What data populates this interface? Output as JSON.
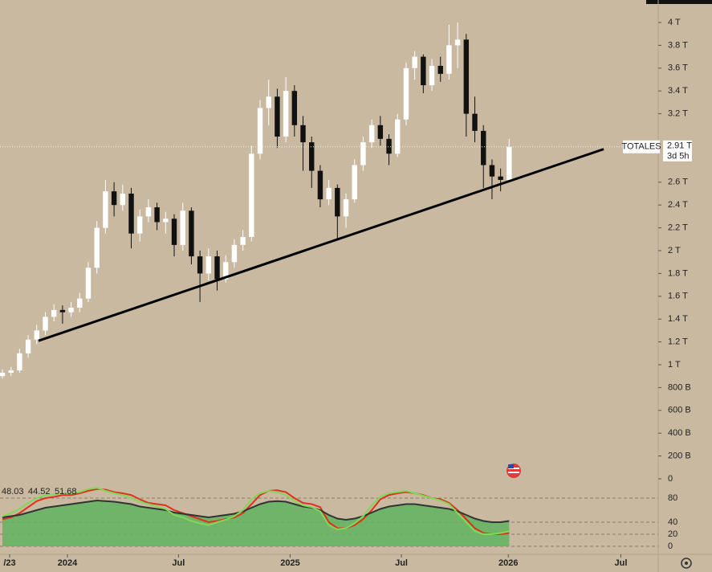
{
  "chart_data": [
    {
      "type": "candlestick",
      "xlim": [
        -0.28,
        76.35
      ],
      "xticks": [
        {
          "value": 0.84,
          "label": "/23"
        },
        {
          "value": 7.57,
          "label": "2024"
        },
        {
          "value": 20.5,
          "label": "Jul"
        },
        {
          "value": 33.5,
          "label": "2025"
        },
        {
          "value": 46.45,
          "label": "Jul"
        },
        {
          "value": 58.9,
          "label": "2026"
        },
        {
          "value": 72,
          "label": "Jul"
        }
      ],
      "ylim": [
        0,
        4
      ],
      "yticks": [
        0,
        {
          "value": 0.2,
          "label": "200 B"
        },
        {
          "value": 0.4,
          "label": "400 B"
        },
        {
          "value": 0.6,
          "label": "600 B"
        },
        {
          "value": 0.8,
          "label": "800 B"
        },
        {
          "value": 1,
          "label": "1 T"
        },
        {
          "value": 1.2,
          "label": "1.2 T"
        },
        {
          "value": 1.4,
          "label": "1.4 T"
        },
        {
          "value": 1.6,
          "label": "1.6 T"
        },
        {
          "value": 1.8,
          "label": "1.8 T"
        },
        {
          "value": 2,
          "label": "2 T"
        },
        {
          "value": 2.2,
          "label": "2.2 T"
        },
        {
          "value": 2.4,
          "label": "2.4 T"
        },
        {
          "value": 2.6,
          "label": "2.6 T"
        },
        {
          "value": 3.2,
          "label": "3.2 T"
        },
        {
          "value": 3.4,
          "label": "3.4 T"
        },
        {
          "value": 3.6,
          "label": "3.6 T"
        },
        {
          "value": 3.8,
          "label": "3.8 T"
        },
        {
          "value": 4,
          "label": "4 T"
        }
      ],
      "up_color": "#ffffff",
      "down_color": "#111111",
      "ohlc": [
        [
          0.9,
          0.96,
          0.88,
          0.93
        ],
        [
          0.93,
          0.98,
          0.9,
          0.95
        ],
        [
          0.95,
          1.14,
          0.93,
          1.1
        ],
        [
          1.1,
          1.26,
          1.06,
          1.22
        ],
        [
          1.22,
          1.35,
          1.18,
          1.3
        ],
        [
          1.3,
          1.46,
          1.26,
          1.42
        ],
        [
          1.42,
          1.53,
          1.38,
          1.48
        ],
        [
          1.48,
          1.52,
          1.36,
          1.46
        ],
        [
          1.46,
          1.55,
          1.42,
          1.5
        ],
        [
          1.5,
          1.63,
          1.46,
          1.58
        ],
        [
          1.58,
          1.9,
          1.55,
          1.85
        ],
        [
          1.85,
          2.26,
          1.8,
          2.2
        ],
        [
          2.2,
          2.62,
          2.15,
          2.52
        ],
        [
          2.52,
          2.6,
          2.3,
          2.4
        ],
        [
          2.4,
          2.58,
          2.35,
          2.5
        ],
        [
          2.5,
          2.55,
          2.02,
          2.15
        ],
        [
          2.15,
          2.36,
          2.08,
          2.3
        ],
        [
          2.3,
          2.45,
          2.25,
          2.38
        ],
        [
          2.38,
          2.42,
          2.18,
          2.25
        ],
        [
          2.25,
          2.34,
          2.15,
          2.28
        ],
        [
          2.28,
          2.32,
          1.95,
          2.05
        ],
        [
          2.05,
          2.42,
          2.0,
          2.35
        ],
        [
          2.35,
          2.38,
          1.88,
          1.95
        ],
        [
          1.95,
          2.0,
          1.55,
          1.8
        ],
        [
          1.8,
          2.02,
          1.74,
          1.95
        ],
        [
          1.95,
          2.0,
          1.65,
          1.75
        ],
        [
          1.75,
          1.96,
          1.72,
          1.9
        ],
        [
          1.9,
          2.1,
          1.85,
          2.05
        ],
        [
          2.05,
          2.18,
          2.0,
          2.12
        ],
        [
          2.12,
          2.92,
          2.08,
          2.85
        ],
        [
          2.85,
          3.32,
          2.8,
          3.25
        ],
        [
          3.25,
          3.5,
          3.1,
          3.35
        ],
        [
          3.35,
          3.42,
          2.9,
          3.0
        ],
        [
          3.0,
          3.52,
          2.95,
          3.4
        ],
        [
          3.4,
          3.45,
          3.0,
          3.1
        ],
        [
          3.1,
          3.18,
          2.7,
          2.95
        ],
        [
          2.95,
          3.0,
          2.55,
          2.7
        ],
        [
          2.7,
          2.75,
          2.38,
          2.45
        ],
        [
          2.45,
          2.62,
          2.4,
          2.55
        ],
        [
          2.55,
          2.58,
          2.1,
          2.3
        ],
        [
          2.3,
          2.5,
          2.2,
          2.45
        ],
        [
          2.45,
          2.8,
          2.42,
          2.75
        ],
        [
          2.75,
          3.0,
          2.7,
          2.95
        ],
        [
          2.95,
          3.15,
          2.9,
          3.1
        ],
        [
          3.1,
          3.18,
          2.92,
          2.98
        ],
        [
          2.98,
          3.02,
          2.75,
          2.85
        ],
        [
          2.85,
          3.2,
          2.82,
          3.15
        ],
        [
          3.15,
          3.65,
          3.1,
          3.6
        ],
        [
          3.6,
          3.75,
          3.5,
          3.7
        ],
        [
          3.7,
          3.72,
          3.38,
          3.45
        ],
        [
          3.45,
          3.68,
          3.4,
          3.62
        ],
        [
          3.62,
          3.7,
          3.48,
          3.55
        ],
        [
          3.55,
          3.98,
          3.5,
          3.8
        ],
        [
          3.8,
          4.0,
          3.6,
          3.85
        ],
        [
          3.85,
          3.9,
          3.0,
          3.2
        ],
        [
          3.2,
          3.35,
          2.95,
          3.05
        ],
        [
          3.05,
          3.1,
          2.55,
          2.75
        ],
        [
          2.75,
          2.8,
          2.45,
          2.65
        ],
        [
          2.65,
          2.72,
          2.52,
          2.62
        ],
        [
          2.62,
          2.98,
          2.6,
          2.91
        ]
      ],
      "trendline": {
        "x": [
          4.2,
          70
        ],
        "values": [
          1.21,
          2.89
        ],
        "color": "#000000"
      },
      "price_tag": {
        "name": "TOTALES",
        "value": 2.91,
        "label": "2.91 T",
        "countdown": "3d 5h"
      }
    },
    {
      "type": "line",
      "xlim": [
        -0.28,
        76.35
      ],
      "ylim": [
        0,
        100
      ],
      "yticks": [
        0,
        20,
        40,
        80
      ],
      "fill_series": 1,
      "fill_color": "#5fb35f",
      "series": [
        {
          "name": "48.03",
          "color": "#e0301e",
          "values": [
            45,
            48,
            55,
            65,
            75,
            80,
            82,
            85,
            85,
            88,
            92,
            95,
            94,
            90,
            88,
            85,
            78,
            72,
            70,
            68,
            60,
            55,
            50,
            45,
            40,
            42,
            45,
            48,
            55,
            70,
            85,
            92,
            93,
            90,
            80,
            72,
            70,
            65,
            40,
            30,
            30,
            35,
            45,
            60,
            78,
            85,
            88,
            90,
            88,
            85,
            80,
            78,
            72,
            60,
            45,
            30,
            22,
            20,
            20,
            22
          ]
        },
        {
          "name": "44.52",
          "color": "#333333",
          "values": [
            48,
            50,
            52,
            56,
            60,
            64,
            66,
            68,
            70,
            72,
            74,
            76,
            75,
            74,
            72,
            70,
            66,
            64,
            62,
            60,
            56,
            54,
            52,
            50,
            48,
            50,
            52,
            54,
            58,
            64,
            70,
            74,
            75,
            74,
            70,
            66,
            64,
            60,
            52,
            46,
            44,
            46,
            50,
            56,
            62,
            66,
            68,
            70,
            70,
            68,
            66,
            64,
            62,
            58,
            52,
            46,
            42,
            40,
            40,
            42
          ]
        },
        {
          "name": "51.68",
          "color": "#7ed957",
          "values": [
            50,
            55,
            62,
            72,
            80,
            85,
            86,
            88,
            88,
            90,
            95,
            97,
            92,
            88,
            85,
            80,
            74,
            70,
            66,
            62,
            52,
            48,
            42,
            38,
            35,
            40,
            44,
            50,
            60,
            78,
            88,
            92,
            90,
            85,
            75,
            68,
            65,
            58,
            35,
            28,
            30,
            38,
            50,
            68,
            82,
            88,
            90,
            92,
            88,
            84,
            80,
            76,
            70,
            55,
            40,
            25,
            20,
            20,
            22,
            25
          ]
        }
      ]
    }
  ]
}
